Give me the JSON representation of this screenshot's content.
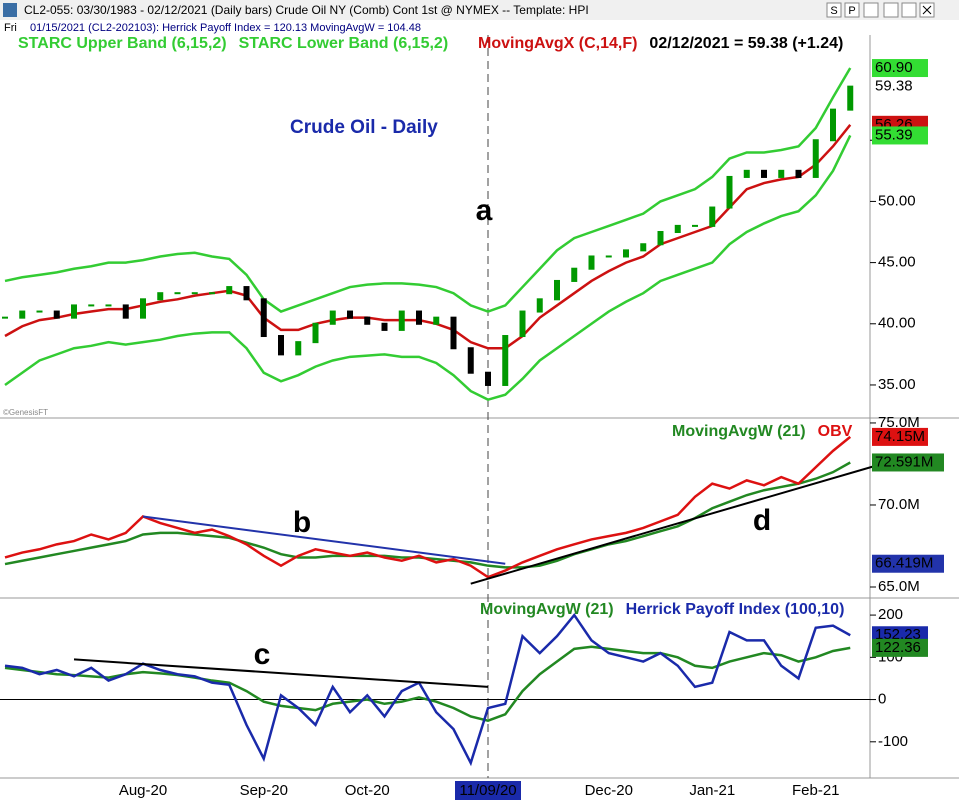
{
  "window": {
    "title": "CL2-055:  03/30/1983 - 02/12/2021  (Daily bars)   Crude Oil NY (Comb) Cont 1st @ NYMEX  --  Template: HPI",
    "buttons": [
      "S",
      "P"
    ]
  },
  "info": {
    "day": "Fri",
    "text": "01/15/2021 (CL2-202103):  Herrick Payoff Index = 120.13  MovingAvgW = 104.48"
  },
  "chart_data": [
    {
      "type": "stock",
      "title": "Crude Oil - Daily",
      "quote": "02/12/2021 = 59.38 (+1.24)",
      "watermark": "©GenesisFT",
      "annotations": [
        "a"
      ],
      "color": "#000000",
      "up_color": "#009900",
      "down_color": "#000000",
      "ylim": [
        32.3,
        63.6
      ],
      "yticks": [
        {
          "value": 35,
          "label": "35.00"
        },
        {
          "value": 40,
          "label": "40.00"
        },
        {
          "value": 45,
          "label": "45.00"
        },
        {
          "value": 50,
          "label": "50.00"
        },
        {
          "value": 55,
          "label": "55.00"
        }
      ],
      "values": [
        40.5,
        41,
        41,
        40.5,
        41.5,
        41.5,
        41.5,
        40.5,
        42,
        42.5,
        42.5,
        42.5,
        42.5,
        43,
        42,
        39,
        37.5,
        38.5,
        40,
        41,
        40.5,
        40,
        39.5,
        41,
        40,
        40.5,
        38,
        36,
        35,
        39,
        41,
        42,
        43.5,
        44.5,
        45.5,
        45.5,
        46,
        46.5,
        47.5,
        48,
        48,
        49.5,
        52,
        52.5,
        52,
        52.5,
        52,
        55,
        57.5,
        59.38
      ],
      "series": [
        {
          "name": "STARC Upper Band (6,15,2)",
          "color": "#33cc33",
          "values": [
            43.5,
            43.8,
            44,
            44.2,
            44.5,
            44.7,
            45,
            45,
            45.2,
            45.5,
            45.7,
            45.8,
            45.5,
            45.3,
            44,
            42,
            41,
            41.5,
            42,
            42.5,
            43,
            43.2,
            43.3,
            43.3,
            43.2,
            43,
            42.5,
            41.5,
            41,
            41.5,
            43,
            44.5,
            46,
            47,
            47.5,
            48,
            48.5,
            49,
            50,
            50.5,
            51,
            52,
            53.5,
            54,
            54,
            54.2,
            54.5,
            56,
            58.5,
            60.9
          ]
        },
        {
          "name": "STARC Lower Band (6,15,2)",
          "color": "#33cc33",
          "values": [
            35,
            36,
            37,
            37.5,
            38,
            38.2,
            38.5,
            38.3,
            38.5,
            38.7,
            39,
            39.2,
            39.3,
            39.3,
            38,
            36,
            35.3,
            35.8,
            36.5,
            37,
            37.3,
            37.4,
            37.5,
            37.3,
            37.3,
            36.8,
            35.8,
            34.5,
            33.8,
            34.2,
            35.5,
            37,
            38,
            39,
            40,
            41,
            41.8,
            42.5,
            43.5,
            44,
            44.5,
            45,
            46.5,
            47.5,
            48.2,
            48.8,
            49.2,
            50.5,
            52.5,
            55.39
          ]
        },
        {
          "name": "MovingAvgX (C,14,F)",
          "color": "#cc1111",
          "values": [
            39,
            39.8,
            40.3,
            40.5,
            40.8,
            41,
            41.2,
            41.2,
            41.5,
            41.8,
            42,
            42.3,
            42.5,
            42.7,
            42.3,
            40.5,
            39.5,
            39.5,
            40,
            40.3,
            40.5,
            40.5,
            40.3,
            40.3,
            40.3,
            40,
            39.5,
            38.5,
            38,
            38,
            39,
            40.5,
            41.5,
            42.5,
            43.5,
            44.3,
            45,
            45.5,
            46.5,
            47,
            47.5,
            48,
            49.5,
            51,
            51.5,
            51.8,
            52,
            53,
            54.5,
            56.26
          ]
        }
      ],
      "markers": [
        {
          "value": 60.9,
          "label": "60.90",
          "color": "#33dd33",
          "text_color": "#000000"
        },
        {
          "value": 59.38,
          "label": "59.38",
          "color": "#ffffff",
          "text_color": "#000000"
        },
        {
          "value": 56.26,
          "label": "56.26",
          "color": "#cc1111",
          "text_color": "#ffffff"
        },
        {
          "value": 55.39,
          "label": "55.39",
          "color": "#33dd33",
          "text_color": "#000000"
        }
      ]
    },
    {
      "type": "line",
      "annotations": [
        "b",
        "d"
      ],
      "ylim": [
        64.33,
        75.18
      ],
      "yticks": [
        {
          "value": 65,
          "label": "65.0M"
        },
        {
          "value": 70,
          "label": "70.0M"
        },
        {
          "value": 75,
          "label": "75.0M"
        }
      ],
      "series": [
        {
          "name": "MovingAvgW (21)",
          "color": "#228822",
          "values": [
            66.4,
            66.6,
            66.8,
            67.0,
            67.2,
            67.4,
            67.6,
            67.8,
            68.2,
            68.3,
            68.3,
            68.2,
            68.1,
            68.0,
            67.7,
            67.4,
            67.0,
            66.8,
            66.8,
            66.9,
            66.9,
            66.9,
            66.9,
            66.8,
            66.8,
            66.7,
            66.6,
            66.5,
            66.3,
            66.2,
            66.2,
            66.3,
            66.6,
            67.0,
            67.3,
            67.6,
            67.8,
            68.1,
            68.4,
            68.7,
            69.2,
            69.8,
            70.2,
            70.6,
            70.9,
            71.1,
            71.3,
            71.6,
            72.0,
            72.591
          ]
        },
        {
          "name": "OBV",
          "color": "#dd1111",
          "values": [
            66.8,
            67.1,
            67.3,
            67.6,
            67.8,
            68.2,
            67.9,
            68.3,
            69.3,
            68.9,
            68.6,
            68.3,
            68.5,
            68.1,
            67.6,
            66.9,
            66.3,
            66.9,
            67.3,
            67.1,
            66.9,
            67.1,
            66.8,
            66.6,
            66.9,
            66.5,
            66.7,
            66.3,
            65.6,
            66.0,
            66.5,
            66.9,
            67.3,
            67.6,
            67.9,
            68.1,
            68.3,
            68.6,
            69.0,
            69.4,
            70.5,
            71.3,
            71.0,
            71.5,
            71.2,
            71.7,
            71.3,
            72.3,
            73.3,
            74.15
          ]
        }
      ],
      "trendlines": [
        {
          "color": "#2233aa",
          "x": [
            8,
            29
          ],
          "y": [
            69.3,
            66.419
          ]
        },
        {
          "color": "#000000",
          "x": [
            27,
            50.5
          ],
          "y": [
            65.2,
            72.4
          ]
        }
      ],
      "markers": [
        {
          "value": 74.15,
          "label": "74.15M",
          "color": "#dd1111",
          "text_color": "#ffffff"
        },
        {
          "value": 72.591,
          "label": "72.591M",
          "color": "#228822",
          "text_color": "#ffffff"
        },
        {
          "value": 66.419,
          "label": "66.419M",
          "color": "#2233aa",
          "text_color": "#ffffff"
        }
      ]
    },
    {
      "type": "line",
      "annotations": [
        "c"
      ],
      "zero_line": true,
      "highlight_index": 28,
      "ylim": [
        -185.7,
        235.7
      ],
      "yticks": [
        -100,
        0,
        100,
        200
      ],
      "categories": [
        null,
        null,
        null,
        null,
        null,
        null,
        null,
        null,
        "Aug-20",
        null,
        null,
        null,
        null,
        null,
        null,
        "Sep-20",
        null,
        null,
        null,
        null,
        null,
        "Oct-20",
        null,
        null,
        null,
        null,
        null,
        null,
        "11/09/20",
        null,
        null,
        null,
        null,
        null,
        null,
        "Dec-20",
        null,
        null,
        null,
        null,
        null,
        "Jan-21",
        null,
        null,
        null,
        null,
        null,
        "Feb-21",
        null,
        null
      ],
      "series": [
        {
          "name": "MovingAvgW (21)",
          "color": "#228822",
          "values": [
            75,
            70,
            65,
            60,
            58,
            55,
            52,
            60,
            65,
            62,
            58,
            52,
            45,
            40,
            20,
            -5,
            -15,
            -20,
            -25,
            -10,
            -5,
            0,
            -10,
            -5,
            5,
            -5,
            -20,
            -40,
            -50,
            -35,
            20,
            60,
            90,
            120,
            125,
            120,
            115,
            110,
            110,
            100,
            80,
            75,
            90,
            100,
            110,
            105,
            90,
            100,
            115,
            122.36
          ]
        },
        {
          "name": "Herrick Payoff Index (100,10)",
          "color": "#1a2aaa",
          "values": [
            80,
            75,
            60,
            70,
            55,
            75,
            45,
            60,
            85,
            70,
            60,
            55,
            40,
            35,
            -60,
            -140,
            10,
            -20,
            -60,
            30,
            -30,
            10,
            -40,
            20,
            40,
            -30,
            -70,
            -150,
            -20,
            -10,
            150,
            110,
            150,
            200,
            140,
            110,
            100,
            90,
            110,
            80,
            30,
            40,
            160,
            140,
            140,
            80,
            50,
            170,
            175,
            152.23
          ]
        }
      ],
      "trendlines": [
        {
          "color": "#000000",
          "x": [
            4,
            28
          ],
          "y": [
            95,
            30
          ]
        }
      ],
      "markers": [
        {
          "value": 152.23,
          "label": "152.23",
          "color": "#1a2aaa",
          "text_color": "#ffffff"
        },
        {
          "value": 122.36,
          "label": "122.36",
          "color": "#228822",
          "text_color": "#ffffff"
        }
      ]
    }
  ]
}
